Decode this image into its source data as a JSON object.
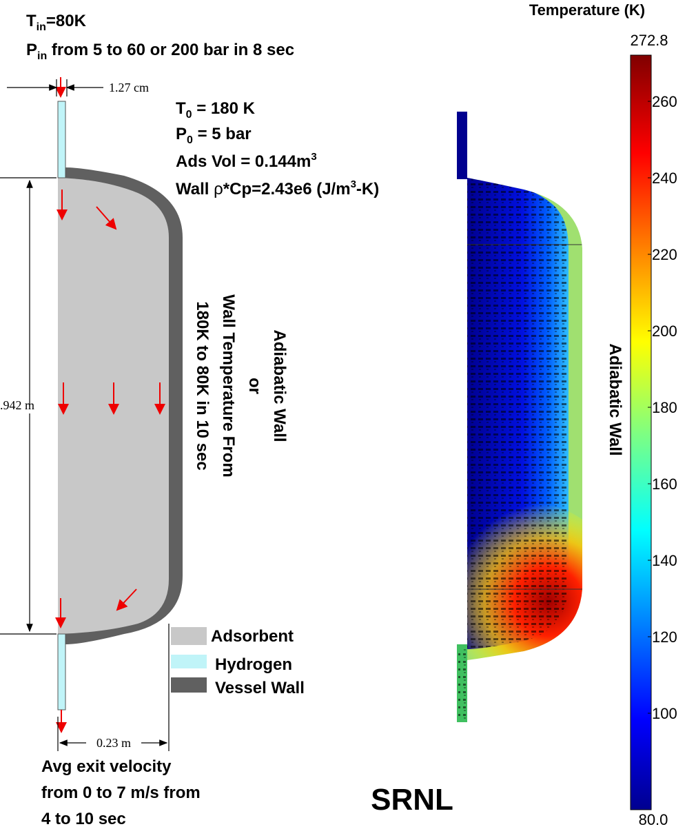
{
  "inlet": {
    "temperature": {
      "symbol": "T",
      "subscript": "in",
      "text": "=80K"
    },
    "pressure": {
      "symbol": "P",
      "subscript": "in",
      "text": " from 5 to 60 or 200 bar in 8 sec"
    }
  },
  "tube_width": "1.27 cm",
  "initial": {
    "temperature": {
      "symbol": "T",
      "subscript": "0",
      "text": " = 180 K"
    },
    "pressure": {
      "symbol": "P",
      "subscript": "0",
      "text": " = 5 bar"
    },
    "volume": {
      "text": "Ads Vol = 0.144m",
      "superscript": "3"
    },
    "wall": {
      "text": "Wall ",
      "symbol": "ρ",
      "text2": "*Cp=2.43e6 (J/m",
      "superscript": "3",
      "text3": "-K)"
    }
  },
  "wall_condition": [
    "Adiabatic Wall",
    "or",
    "Wall Temperature From",
    "180K to 80K in 10 sec"
  ],
  "height": ".942 m",
  "radius": "0.23 m",
  "legend": [
    "Adsorbent",
    "Hydrogen",
    "Vessel Wall"
  ],
  "exit": [
    "Avg exit velocity",
    "from 0 to 7 m/s from",
    "4 to 10 sec"
  ],
  "right_wall": "Adiabatic Wall",
  "logo": "SRNL",
  "colorbar": {
    "title": "Temperature (K)",
    "lim": [
      80,
      272.8
    ],
    "ticks": [
      {
        "value": 80,
        "label": "80.0"
      },
      100,
      120,
      140,
      160,
      180,
      200,
      220,
      240,
      260,
      272.8
    ]
  }
}
